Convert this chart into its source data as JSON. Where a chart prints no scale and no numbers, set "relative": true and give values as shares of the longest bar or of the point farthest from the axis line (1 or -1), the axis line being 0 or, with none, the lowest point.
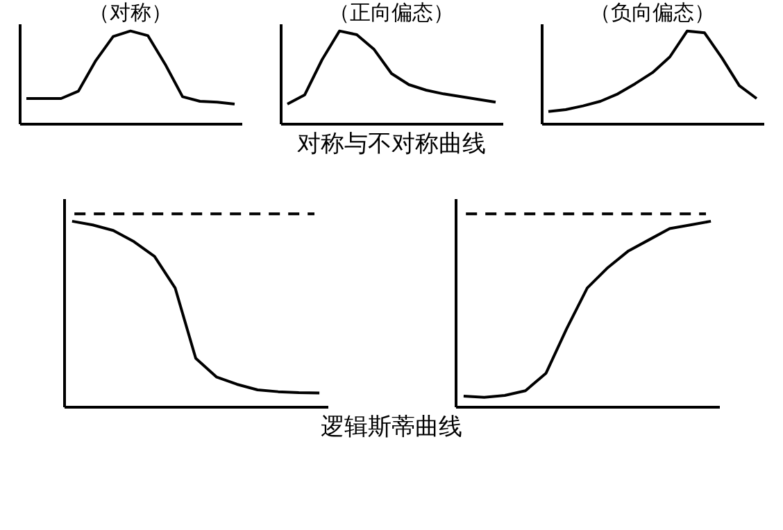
{
  "chart_data": [
    {
      "type": "line",
      "title": "（对称）",
      "relative": true,
      "tick_labels": false,
      "grid": false,
      "categories": [
        null,
        null,
        null,
        null,
        null,
        null,
        null,
        null,
        null,
        null,
        null,
        null,
        null
      ],
      "series": [
        {
          "color": "#000000",
          "values": [
            0.27,
            0.27,
            0.27,
            0.35,
            0.68,
            0.94,
            1,
            0.95,
            0.64,
            0.29,
            0.24,
            0.23,
            0.21
          ]
        }
      ]
    },
    {
      "type": "line",
      "title": "（正向偏态）",
      "relative": true,
      "tick_labels": false,
      "grid": false,
      "annotations": [
        "对称与不对称曲线"
      ],
      "categories": [
        null,
        null,
        null,
        null,
        null,
        null,
        null,
        null,
        null,
        null,
        null,
        null,
        null
      ],
      "series": [
        {
          "color": "#000000",
          "values": [
            0.21,
            0.31,
            0.69,
            1,
            0.96,
            0.8,
            0.54,
            0.42,
            0.36,
            0.32,
            0.29,
            0.26,
            0.23
          ]
        }
      ]
    },
    {
      "type": "line",
      "title": "（负向偏态）",
      "relative": true,
      "tick_labels": false,
      "grid": false,
      "categories": [
        null,
        null,
        null,
        null,
        null,
        null,
        null,
        null,
        null,
        null,
        null,
        null,
        null
      ],
      "series": [
        {
          "color": "#000000",
          "values": [
            0.13,
            0.15,
            0.19,
            0.24,
            0.32,
            0.43,
            0.55,
            0.72,
            1,
            0.98,
            0.71,
            0.41,
            0.27
          ]
        }
      ]
    },
    {
      "type": "line",
      "relative": true,
      "tick_labels": false,
      "grid": false,
      "annotations": [
        "逻辑斯蒂曲线"
      ],
      "ref_lines": [
        {
          "axis": "y",
          "value": 1.04,
          "color": "#000000",
          "line_style": "dashed"
        }
      ],
      "categories": [
        null,
        null,
        null,
        null,
        null,
        null,
        null,
        null,
        null,
        null,
        null,
        null,
        null
      ],
      "series": [
        {
          "color": "#000000",
          "values": [
            1,
            0.98,
            0.95,
            0.89,
            0.81,
            0.64,
            0.26,
            0.16,
            0.12,
            0.09,
            0.08,
            0.075,
            0.073
          ]
        }
      ]
    },
    {
      "type": "line",
      "relative": true,
      "tick_labels": false,
      "grid": false,
      "ref_lines": [
        {
          "axis": "y",
          "value": 1.04,
          "color": "#000000",
          "line_style": "dashed"
        }
      ],
      "categories": [
        null,
        null,
        null,
        null,
        null,
        null,
        null,
        null,
        null,
        null,
        null,
        null,
        null
      ],
      "series": [
        {
          "color": "#000000",
          "values": [
            0.056,
            0.05,
            0.06,
            0.085,
            0.18,
            0.42,
            0.64,
            0.75,
            0.84,
            0.9,
            0.96,
            0.98,
            1
          ]
        }
      ]
    }
  ]
}
